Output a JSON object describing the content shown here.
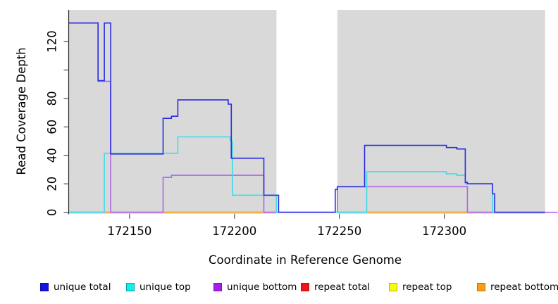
{
  "figure": {
    "background_color": "#ffffff",
    "plot_background_color": "#d9d9d9",
    "gap_band_color": "#ffffff"
  },
  "chart_data": {
    "type": "line",
    "style": "step",
    "title": "",
    "xlabel": "Coordinate in Reference Genome",
    "ylabel": "Read Coverage Depth",
    "xlim": [
      172121,
      172354
    ],
    "ylim": [
      0,
      142
    ],
    "grid": false,
    "x_ticks": [
      {
        "v": 172150,
        "label": "172150"
      },
      {
        "v": 172200,
        "label": "172200"
      },
      {
        "v": 172250,
        "label": "172250"
      },
      {
        "v": 172300,
        "label": "172300"
      }
    ],
    "y_ticks": [
      {
        "v": 0,
        "label": "0"
      },
      {
        "v": 20,
        "label": "20"
      },
      {
        "v": 40,
        "label": "40"
      },
      {
        "v": 60,
        "label": "60"
      },
      {
        "v": 80,
        "label": "80"
      },
      {
        "v": 100,
        "label": ""
      },
      {
        "v": 120,
        "label": "120"
      }
    ],
    "shaded_regions": [
      {
        "from": 172121,
        "to": 172220,
        "color": "#d9d9d9"
      },
      {
        "from": 172249,
        "to": 172348,
        "color": "#d9d9d9"
      }
    ],
    "series": [
      {
        "name": "repeat total",
        "color": "#dd2222",
        "points": [
          [
            172121,
            0
          ],
          [
            172348,
            0
          ]
        ]
      },
      {
        "name": "repeat top",
        "color": "#e6e600",
        "points": [
          [
            172121,
            0
          ],
          [
            172348,
            0
          ]
        ]
      },
      {
        "name": "repeat bottom",
        "color": "#ffa41e",
        "points": [
          [
            172121,
            0
          ],
          [
            172348,
            0
          ]
        ]
      },
      {
        "name": "unique bottom",
        "color": "#b164e4",
        "points": [
          [
            172121,
            133
          ],
          [
            172135,
            92
          ],
          [
            172141,
            0
          ],
          [
            172166,
            24.5
          ],
          [
            172170,
            26
          ],
          [
            172214,
            0
          ],
          [
            172249,
            18
          ],
          [
            172311,
            0
          ],
          [
            172354,
            0
          ]
        ]
      },
      {
        "name": "unique top",
        "color": "#3edce8",
        "points": [
          [
            172121,
            0
          ],
          [
            172138,
            41.5
          ],
          [
            172173,
            53
          ],
          [
            172198,
            50
          ],
          [
            172199,
            12
          ],
          [
            172220,
            0
          ],
          [
            172263,
            28.5
          ],
          [
            172301,
            27
          ],
          [
            172306,
            26
          ],
          [
            172310,
            20
          ],
          [
            172323,
            0
          ],
          [
            172348,
            0
          ]
        ]
      },
      {
        "name": "unique total",
        "color": "#2a2ce2",
        "points": [
          [
            172121,
            133
          ],
          [
            172135,
            92.5
          ],
          [
            172138,
            133
          ],
          [
            172141,
            41
          ],
          [
            172166,
            66
          ],
          [
            172170,
            67.5
          ],
          [
            172173,
            79
          ],
          [
            172197,
            76
          ],
          [
            172198.5,
            38
          ],
          [
            172214,
            12
          ],
          [
            172221,
            0
          ],
          [
            172248,
            16
          ],
          [
            172249,
            18
          ],
          [
            172262,
            47
          ],
          [
            172301,
            45.5
          ],
          [
            172306,
            44.5
          ],
          [
            172310,
            21
          ],
          [
            172311,
            20
          ],
          [
            172323,
            13
          ],
          [
            172324,
            0
          ],
          [
            172348,
            0
          ]
        ]
      }
    ],
    "legend": {
      "position": "bottom",
      "items": [
        {
          "label": "unique total",
          "fill": "#1414dd",
          "border": "#0b0bb0"
        },
        {
          "label": "unique top",
          "fill": "#10eeee",
          "border": "#0b9dae"
        },
        {
          "label": "unique bottom",
          "fill": "#a420ea",
          "border": "#7a14b4"
        },
        {
          "label": "repeat total",
          "fill": "#f01414",
          "border": "#b40f0f"
        },
        {
          "label": "repeat top",
          "fill": "#fafa10",
          "border": "#b4b40c"
        },
        {
          "label": "repeat bottom",
          "fill": "#fb9e14",
          "border": "#b87308"
        }
      ]
    }
  }
}
